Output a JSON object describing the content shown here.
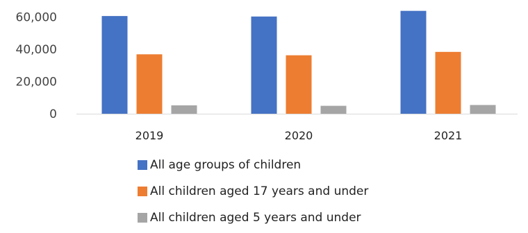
{
  "chart_data": {
    "type": "bar",
    "categories": [
      "2019",
      "2020",
      "2021"
    ],
    "series": [
      {
        "name": "All age groups of children",
        "color": "#4472C4",
        "values": [
          60500,
          60200,
          63700
        ]
      },
      {
        "name": "All children aged 17 years and under",
        "color": "#ED7D31",
        "values": [
          36800,
          36200,
          38300
        ]
      },
      {
        "name": "All children aged 5 years and under",
        "color": "#A5A5A5",
        "values": [
          5200,
          4900,
          5400
        ]
      }
    ],
    "ylim": [
      0,
      70000
    ],
    "y_ticks": [
      "0",
      "20,000",
      "40,000",
      "60,000"
    ],
    "y_tick_values": [
      0,
      20000,
      40000,
      60000
    ],
    "grid": false,
    "legend_position": "bottom"
  }
}
